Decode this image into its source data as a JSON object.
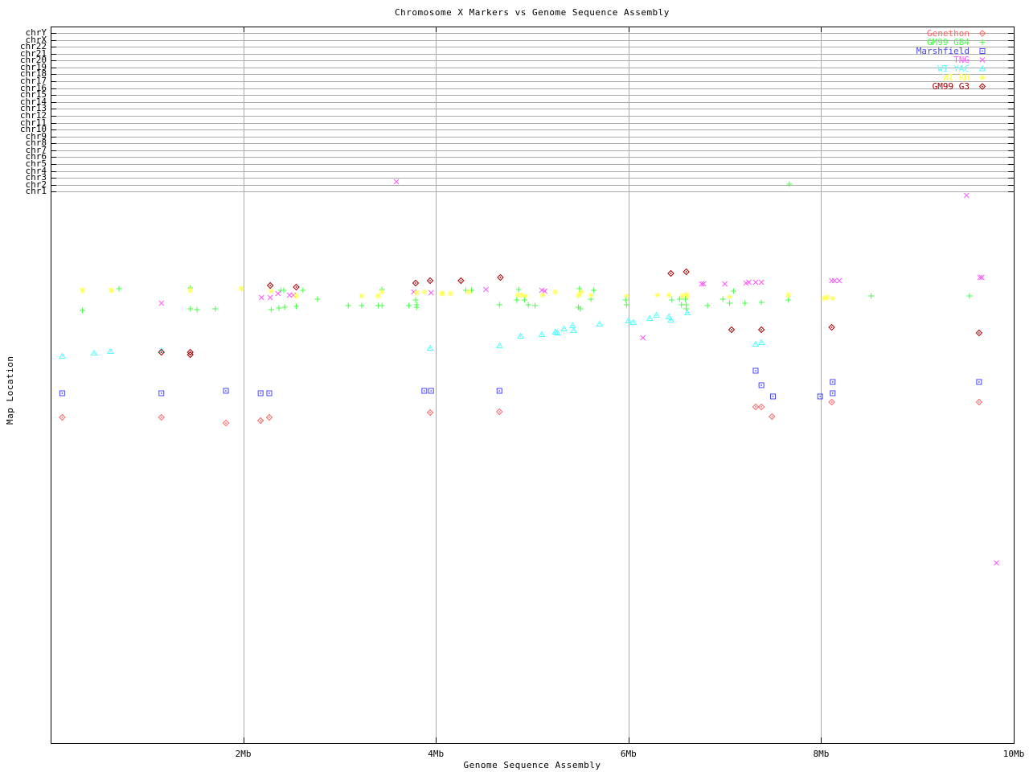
{
  "title": "Chromosome X Markers vs Genome Sequence Assembly",
  "x_axis": {
    "label": "Genome Sequence Assembly",
    "unit": "Mb",
    "range_mb": [
      0,
      10
    ],
    "ticks": [
      {
        "label": "2Mb",
        "mb": 2
      },
      {
        "label": "4Mb",
        "mb": 4
      },
      {
        "label": "6Mb",
        "mb": 6
      },
      {
        "label": "8Mb",
        "mb": 8
      },
      {
        "label": "10Mb",
        "mb": 10
      }
    ]
  },
  "y_axis": {
    "label": "Map Location",
    "chromosome_rows": [
      "chrY",
      "chrX",
      "chr22",
      "chr21",
      "chr20",
      "chr19",
      "chr18",
      "chr17",
      "chr16",
      "chr15",
      "chr14",
      "chr13",
      "chr12",
      "chr11",
      "chr10",
      "chr9",
      "chr8",
      "chr7",
      "chr6",
      "chr5",
      "chr4",
      "chr3",
      "chr2",
      "chr1"
    ]
  },
  "colors": {
    "grid": "#aaaaaa",
    "border": "#000000",
    "background": "#ffffff"
  },
  "chart_data": {
    "type": "scatter",
    "title": "Chromosome X Markers vs Genome Sequence Assembly",
    "xlabel": "Genome Sequence Assembly",
    "ylabel": "Map Location",
    "x_unit": "Mb",
    "xlim": [
      0,
      10
    ],
    "grid": "horizontal lines at chromosome rows (top band) + vertical lines at 2,4,6,8 Mb",
    "legend_position": "top-right",
    "y_encoding": "y is screenshot pixel row (map-location axis is unlabeled); chromosome band rows span y=41(chrY) to y=238(chr1)",
    "series": [
      {
        "name": "Genethon",
        "color": "#ff6666",
        "marker": "diamond-dot",
        "points": [
          [
            0.12,
            519
          ],
          [
            1.15,
            519
          ],
          [
            1.82,
            526
          ],
          [
            2.18,
            523
          ],
          [
            2.27,
            519
          ],
          [
            3.94,
            513
          ],
          [
            4.66,
            512
          ],
          [
            7.32,
            506
          ],
          [
            7.38,
            506
          ],
          [
            7.49,
            518
          ],
          [
            8.11,
            500
          ],
          [
            9.64,
            500
          ]
        ]
      },
      {
        "name": "GM99 GB4",
        "color": "#44ff44",
        "marker": "plus",
        "points": [
          [
            0.33,
            386
          ],
          [
            0.71,
            359
          ],
          [
            1.45,
            358
          ],
          [
            1.45,
            384
          ],
          [
            1.52,
            385
          ],
          [
            1.71,
            384
          ],
          [
            2.29,
            385
          ],
          [
            2.37,
            383
          ],
          [
            2.39,
            361
          ],
          [
            2.42,
            361
          ],
          [
            2.43,
            382
          ],
          [
            2.55,
            381
          ],
          [
            2.62,
            361
          ],
          [
            2.77,
            372
          ],
          [
            3.09,
            380
          ],
          [
            3.23,
            380
          ],
          [
            3.4,
            380
          ],
          [
            3.44,
            380
          ],
          [
            3.44,
            360
          ],
          [
            3.72,
            380
          ],
          [
            3.79,
            373
          ],
          [
            3.8,
            379
          ],
          [
            3.8,
            382
          ],
          [
            4.31,
            361
          ],
          [
            4.37,
            361
          ],
          [
            4.66,
            379
          ],
          [
            4.84,
            373
          ],
          [
            4.86,
            360
          ],
          [
            4.92,
            373
          ],
          [
            4.96,
            379
          ],
          [
            5.03,
            380
          ],
          [
            5.48,
            382
          ],
          [
            5.49,
            359
          ],
          [
            5.5,
            384
          ],
          [
            5.61,
            372
          ],
          [
            5.64,
            361
          ],
          [
            5.97,
            373
          ],
          [
            5.98,
            379
          ],
          [
            6.45,
            373
          ],
          [
            6.53,
            372
          ],
          [
            6.55,
            379
          ],
          [
            6.59,
            372
          ],
          [
            6.6,
            379
          ],
          [
            6.6,
            384
          ],
          [
            6.82,
            380
          ],
          [
            6.98,
            372
          ],
          [
            7.05,
            377
          ],
          [
            7.09,
            362
          ],
          [
            7.21,
            377
          ],
          [
            7.38,
            376
          ],
          [
            7.66,
            373
          ],
          [
            7.67,
            229
          ],
          [
            8.52,
            368
          ],
          [
            9.54,
            368
          ]
        ]
      },
      {
        "name": "Marshfield",
        "color": "#4444ff",
        "marker": "square-dot",
        "points": [
          [
            0.12,
            489
          ],
          [
            1.15,
            489
          ],
          [
            1.82,
            486
          ],
          [
            2.18,
            489
          ],
          [
            2.27,
            489
          ],
          [
            3.88,
            486
          ],
          [
            3.95,
            486
          ],
          [
            4.66,
            486
          ],
          [
            7.32,
            461
          ],
          [
            7.38,
            479
          ],
          [
            7.5,
            493
          ],
          [
            7.99,
            493
          ],
          [
            8.12,
            475
          ],
          [
            8.12,
            489
          ],
          [
            9.64,
            475
          ]
        ]
      },
      {
        "name": "TNG",
        "color": "#ff55ff",
        "marker": "cross",
        "points": [
          [
            1.15,
            377
          ],
          [
            2.19,
            370
          ],
          [
            2.28,
            370
          ],
          [
            2.36,
            365
          ],
          [
            2.48,
            367
          ],
          [
            2.52,
            367
          ],
          [
            3.59,
            226
          ],
          [
            3.77,
            363
          ],
          [
            3.95,
            364
          ],
          [
            4.52,
            360
          ],
          [
            5.1,
            361
          ],
          [
            5.13,
            362
          ],
          [
            6.15,
            420
          ],
          [
            6.76,
            353
          ],
          [
            6.78,
            353
          ],
          [
            7.0,
            353
          ],
          [
            7.22,
            352
          ],
          [
            7.25,
            351
          ],
          [
            7.32,
            351
          ],
          [
            7.38,
            351
          ],
          [
            8.11,
            349
          ],
          [
            8.14,
            349
          ],
          [
            8.19,
            349
          ],
          [
            9.51,
            243
          ],
          [
            9.65,
            345
          ],
          [
            9.67,
            345
          ],
          [
            9.82,
            700
          ]
        ]
      },
      {
        "name": "WI YAC",
        "color": "#55ffff",
        "marker": "triangle-dot",
        "points": [
          [
            0.12,
            443
          ],
          [
            0.45,
            439
          ],
          [
            0.62,
            437
          ],
          [
            1.15,
            436
          ],
          [
            3.94,
            433
          ],
          [
            4.66,
            430
          ],
          [
            4.88,
            418
          ],
          [
            5.1,
            416
          ],
          [
            5.24,
            413
          ],
          [
            5.26,
            414
          ],
          [
            5.33,
            409
          ],
          [
            5.42,
            405
          ],
          [
            5.43,
            411
          ],
          [
            5.7,
            403
          ],
          [
            6.0,
            399
          ],
          [
            6.05,
            401
          ],
          [
            6.22,
            396
          ],
          [
            6.29,
            392
          ],
          [
            6.42,
            394
          ],
          [
            6.44,
            398
          ],
          [
            6.61,
            389
          ],
          [
            7.32,
            428
          ],
          [
            7.38,
            426
          ]
        ]
      },
      {
        "name": "WI RH",
        "color": "#ffff55",
        "marker": "star",
        "points": [
          [
            0.33,
            361
          ],
          [
            0.63,
            361
          ],
          [
            1.45,
            361
          ],
          [
            1.98,
            359
          ],
          [
            2.29,
            362
          ],
          [
            2.55,
            368
          ],
          [
            3.23,
            368
          ],
          [
            3.4,
            368
          ],
          [
            3.44,
            363
          ],
          [
            3.8,
            364
          ],
          [
            3.88,
            363
          ],
          [
            4.06,
            365
          ],
          [
            4.07,
            365
          ],
          [
            4.15,
            365
          ],
          [
            4.34,
            363
          ],
          [
            4.85,
            367
          ],
          [
            4.89,
            367
          ],
          [
            4.93,
            368
          ],
          [
            5.11,
            367
          ],
          [
            5.24,
            363
          ],
          [
            5.48,
            368
          ],
          [
            5.49,
            366
          ],
          [
            5.51,
            363
          ],
          [
            5.61,
            367
          ],
          [
            5.98,
            368
          ],
          [
            6.3,
            367
          ],
          [
            6.42,
            367
          ],
          [
            6.56,
            368
          ],
          [
            6.6,
            366
          ],
          [
            6.61,
            368
          ],
          [
            7.05,
            369
          ],
          [
            7.66,
            367
          ],
          [
            8.03,
            371
          ],
          [
            8.06,
            370
          ],
          [
            8.12,
            371
          ]
        ]
      },
      {
        "name": "GM99 G3",
        "color": "#aa0000",
        "marker": "diamond-dot",
        "points": [
          [
            1.15,
            438
          ],
          [
            1.45,
            438
          ],
          [
            1.45,
            441
          ],
          [
            2.28,
            355
          ],
          [
            2.55,
            357
          ],
          [
            3.79,
            352
          ],
          [
            3.94,
            349
          ],
          [
            4.26,
            349
          ],
          [
            4.67,
            345
          ],
          [
            6.44,
            340
          ],
          [
            6.6,
            338
          ],
          [
            7.07,
            410
          ],
          [
            7.38,
            410
          ],
          [
            8.11,
            407
          ],
          [
            9.64,
            414
          ]
        ]
      }
    ]
  }
}
